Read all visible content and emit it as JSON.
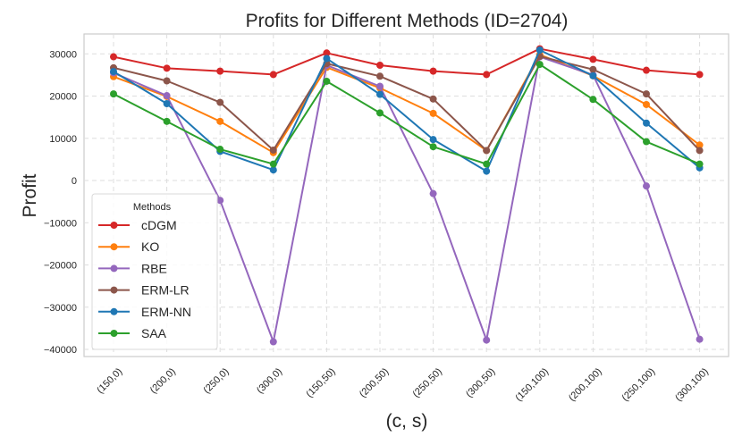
{
  "chart_data": {
    "type": "line",
    "title": "Profits for Different Methods (ID=2704)",
    "xlabel": "(c, s)",
    "ylabel": "Profit",
    "categories": [
      "(150,0)",
      "(200,0)",
      "(250,0)",
      "(300,0)",
      "(150,50)",
      "(200,50)",
      "(250,50)",
      "(300,50)",
      "(150,100)",
      "(200,100)",
      "(250,100)",
      "(300,100)"
    ],
    "yticks": [
      30000,
      20000,
      10000,
      0,
      -10000,
      -20000,
      -30000,
      -40000
    ],
    "ylim": [
      -41500,
      33500
    ],
    "grid": true,
    "legend": {
      "title": "Methods",
      "placement": "lower-left"
    },
    "series": [
      {
        "name": "cDGM",
        "color": "#d62728",
        "values": [
          29300,
          26600,
          25900,
          25100,
          30200,
          27300,
          25900,
          25100,
          31200,
          28700,
          26100,
          25100
        ]
      },
      {
        "name": "KO",
        "color": "#ff7f0e",
        "values": [
          24600,
          19900,
          14000,
          6600,
          26800,
          21900,
          15900,
          7100,
          29800,
          24800,
          18000,
          8400
        ]
      },
      {
        "name": "RBE",
        "color": "#9467bd",
        "values": [
          25500,
          20100,
          -4700,
          -38200,
          27300,
          22300,
          -3100,
          -37800,
          29300,
          25000,
          -1300,
          -37600
        ]
      },
      {
        "name": "ERM-LR",
        "color": "#8c564b",
        "values": [
          26700,
          23600,
          18500,
          7200,
          27700,
          24700,
          19300,
          7100,
          29400,
          26300,
          20500,
          7100
        ]
      },
      {
        "name": "ERM-NN",
        "color": "#1f77b4",
        "values": [
          25800,
          18200,
          6900,
          2500,
          28900,
          20400,
          9700,
          2200,
          30900,
          24800,
          13600,
          3000
        ]
      },
      {
        "name": "SAA",
        "color": "#2ca02c",
        "values": [
          20500,
          14000,
          7400,
          3900,
          23500,
          16000,
          8000,
          3900,
          27500,
          19200,
          9200,
          3900
        ]
      }
    ]
  }
}
